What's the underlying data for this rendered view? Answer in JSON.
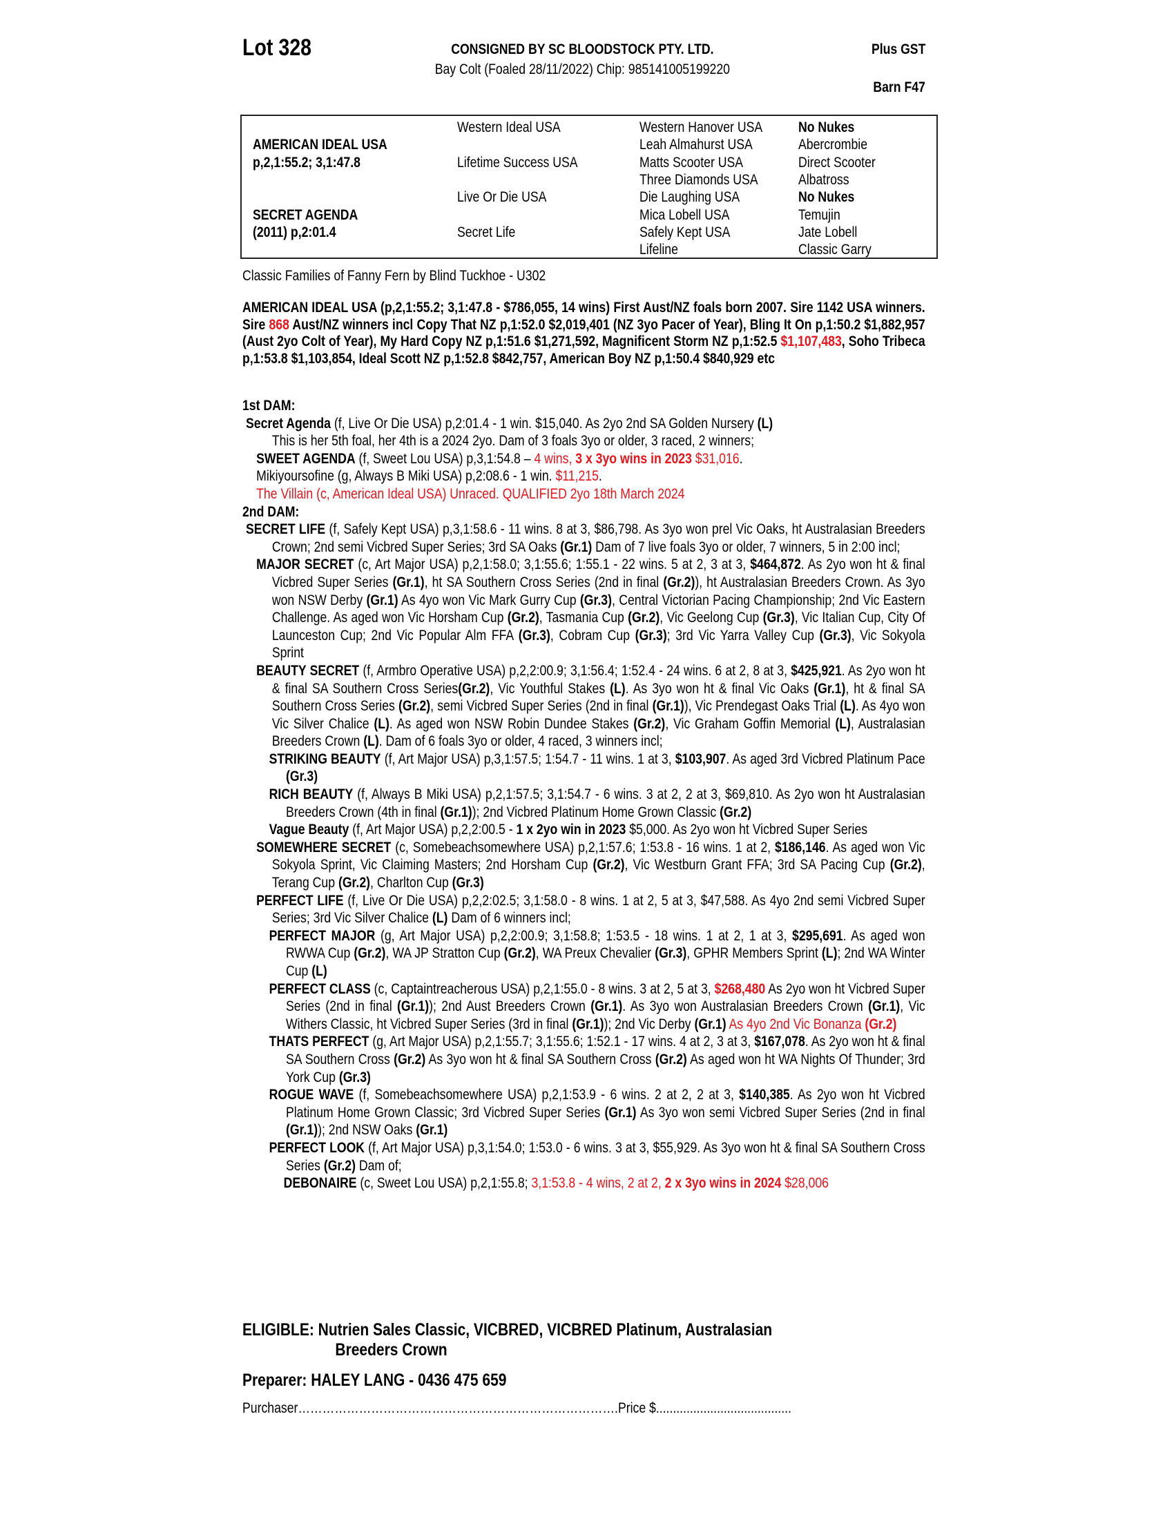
{
  "header": {
    "lot": "Lot 328",
    "consignor": "CONSIGNED BY SC BLOODSTOCK PTY. LTD.",
    "gst": "Plus GST",
    "description": "Bay Colt (Foaled 28/11/2022) Chip: 985141005199220",
    "barn": "Barn F47"
  },
  "pedigree": {
    "rows": [
      {
        "c1": "",
        "c2": "Western Ideal USA",
        "c3": "Western Hanover USA",
        "c4": "No Nukes",
        "c4_bold": true
      },
      {
        "c1": "AMERICAN IDEAL USA",
        "c2": "",
        "c3": "Leah Almahurst USA",
        "c4": "Abercrombie"
      },
      {
        "c1": "p,2,1:55.2; 3,1:47.8",
        "c2": "Lifetime Success USA",
        "c3": "Matts Scooter USA",
        "c4": "Direct Scooter"
      },
      {
        "c1": "",
        "c2": "",
        "c3": "Three Diamonds USA",
        "c4": "Albatross"
      },
      {
        "c1": "",
        "c2": "Live Or Die USA",
        "c3": "Die Laughing USA",
        "c4": "No Nukes",
        "c4_bold": true
      },
      {
        "c1": "SECRET AGENDA",
        "c2": "",
        "c3": "Mica Lobell USA",
        "c4": "Temujin"
      },
      {
        "c1": "(2011) p,2:01.4",
        "c2": "Secret Life",
        "c3": "Safely Kept USA",
        "c4": "Jate Lobell"
      },
      {
        "c1": "",
        "c2": "",
        "c3": "Lifeline",
        "c4": "Classic Garry"
      }
    ]
  },
  "families": "Classic Families of Fanny Fern by Blind Tuckhoe - U302",
  "sire_paragraph": [
    [
      "AMERICAN IDEAL USA (p,2,1:55.2; 3,1:47.8 - $786,055, 14 wins) First Aust/NZ foals born 2007. Sire 1142 USA winners. Sire ",
      "b"
    ],
    [
      "868",
      "br"
    ],
    [
      " Aust/NZ winners incl Copy That NZ p,1:52.0 $2,019,401 (NZ 3yo Pacer of Year), Bling It On p,1:50.2 $1,882,957 (Aust 2yo Colt of Year), My Hard Copy NZ p,1:51.6 $1,271,592, Magnificent Storm NZ p,1:52.5 ",
      "b"
    ],
    [
      "$1,107,483",
      "r"
    ],
    [
      ", Soho Tribeca p,1:53.8 $1,103,854, Ideal Scott NZ p,1:52.8 $842,757, American Boy NZ p,1:50.4 $840,929 etc",
      "b"
    ]
  ],
  "dams": [
    {
      "level": "h",
      "segs": [
        [
          "1st DAM:",
          "b"
        ]
      ]
    },
    {
      "level": "a",
      "segs": [
        [
          "Secret Agenda",
          "b"
        ],
        [
          " (f, Live Or Die USA) p,2:01.4 - 1 win. $15,040. As 2yo 2nd SA Golden Nursery ",
          ""
        ],
        [
          "(L)",
          "b"
        ]
      ]
    },
    {
      "level": "k",
      "segs": [
        [
          "This is her 5th foal, her 4th is a 2024 2yo. Dam of 3 foals 3yo or older, 3 raced, 2 winners;",
          ""
        ]
      ]
    },
    {
      "level": "b",
      "segs": [
        [
          "SWEET AGENDA",
          "b"
        ],
        [
          " (f, Sweet Lou USA) p,3,1:54.8 – ",
          ""
        ],
        [
          "4 wins, ",
          "r"
        ],
        [
          "3 x 3yo wins in 2023",
          "br"
        ],
        [
          " $31,016",
          "r"
        ],
        [
          ".",
          ""
        ]
      ]
    },
    {
      "level": "b",
      "segs": [
        [
          "Mikiyoursofine (g, Always B Miki USA) p,2:08.6 - 1 win. ",
          ""
        ],
        [
          "$11,215",
          "r"
        ],
        [
          ".",
          ""
        ]
      ]
    },
    {
      "level": "b",
      "segs": [
        [
          "The Villain (c, American Ideal USA) Unraced. QUALIFIED 2yo 18th March 2024",
          "r"
        ]
      ]
    },
    {
      "level": "h",
      "segs": [
        [
          "2nd DAM:",
          "b"
        ]
      ]
    },
    {
      "level": "a",
      "segs": [
        [
          "SECRET LIFE",
          "b"
        ],
        [
          " (f, Safely Kept USA) p,3,1:58.6 - 11 wins. 8 at 3, $86,798. As 3yo won prel Vic Oaks, ht Australasian Breeders Crown; 2nd semi Vicbred Super Series; 3rd SA Oaks ",
          ""
        ],
        [
          "(Gr.1)",
          "b"
        ],
        [
          " Dam of 7 live foals 3yo or older, 7 winners, 5 in 2:00 incl;",
          ""
        ]
      ]
    },
    {
      "level": "b",
      "segs": [
        [
          "MAJOR SECRET",
          "b"
        ],
        [
          " (c, Art Major USA) p,2,1:58.0; 3,1:55.6; 1:55.1 - 22 wins. 5 at 2, 3 at 3, ",
          ""
        ],
        [
          "$464,872",
          "b"
        ],
        [
          ". As 2yo won ht & final Vicbred Super Series ",
          ""
        ],
        [
          "(Gr.1)",
          "b"
        ],
        [
          ", ht SA Southern Cross Series (2nd in final ",
          ""
        ],
        [
          "(Gr.2)",
          "b"
        ],
        [
          "), ht Australasian Breeders Crown. As 3yo won NSW Derby ",
          ""
        ],
        [
          "(Gr.1)",
          "b"
        ],
        [
          " As 4yo won Vic Mark Gurry Cup ",
          ""
        ],
        [
          "(Gr.3)",
          "b"
        ],
        [
          ", Central Victorian Pacing Championship; 2nd Vic Eastern Challenge. As aged won Vic Horsham Cup ",
          ""
        ],
        [
          "(Gr.2)",
          "b"
        ],
        [
          ", Tasmania Cup ",
          ""
        ],
        [
          "(Gr.2)",
          "b"
        ],
        [
          ", Vic Geelong Cup ",
          ""
        ],
        [
          "(Gr.3)",
          "b"
        ],
        [
          ", Vic Italian Cup, City Of Launceston Cup; 2nd Vic Popular Alm FFA ",
          ""
        ],
        [
          "(Gr.3)",
          "b"
        ],
        [
          ", Cobram Cup ",
          ""
        ],
        [
          "(Gr.3)",
          "b"
        ],
        [
          "; 3rd Vic Yarra Valley Cup ",
          ""
        ],
        [
          "(Gr.3)",
          "b"
        ],
        [
          ", Vic Sokyola Sprint",
          ""
        ]
      ]
    },
    {
      "level": "b",
      "segs": [
        [
          "BEAUTY SECRET",
          "b"
        ],
        [
          " (f, Armbro Operative USA) p,2,2:00.9; 3,1:56.4; 1:52.4 - 24 wins. 6 at 2, 8 at 3, ",
          ""
        ],
        [
          "$425,921",
          "b"
        ],
        [
          ". As 2yo won ht & final SA Southern Cross Series",
          ""
        ],
        [
          "(Gr.2)",
          "b"
        ],
        [
          ", Vic Youthful Stakes ",
          ""
        ],
        [
          "(L)",
          "b"
        ],
        [
          ". As 3yo won ht & final Vic Oaks ",
          ""
        ],
        [
          "(Gr.1)",
          "b"
        ],
        [
          ", ht & final SA Southern Cross Series ",
          ""
        ],
        [
          "(Gr.2)",
          "b"
        ],
        [
          ", semi Vicbred Super Series (2nd in final ",
          ""
        ],
        [
          "(Gr.1)",
          "b"
        ],
        [
          "), Vic Prendegast Oaks Trial ",
          ""
        ],
        [
          "(L)",
          "b"
        ],
        [
          ". As 4yo won Vic Silver Chalice ",
          ""
        ],
        [
          "(L)",
          "b"
        ],
        [
          ". As aged won NSW Robin Dundee Stakes ",
          ""
        ],
        [
          "(Gr.2)",
          "b"
        ],
        [
          ", Vic Graham Goffin Memorial ",
          ""
        ],
        [
          "(L)",
          "b"
        ],
        [
          ", Australasian Breeders Crown ",
          ""
        ],
        [
          "(L)",
          "b"
        ],
        [
          ". Dam of 6 foals 3yo or older, 4 raced, 3 winners incl;",
          ""
        ]
      ]
    },
    {
      "level": "c",
      "segs": [
        [
          "STRIKING BEAUTY",
          "b"
        ],
        [
          " (f, Art Major USA) p,3,1:57.5; 1:54.7 - 11 wins. 1 at 3, ",
          ""
        ],
        [
          "$103,907",
          "b"
        ],
        [
          ". As aged 3rd Vicbred Platinum Pace ",
          ""
        ],
        [
          "(Gr.3)",
          "b"
        ]
      ]
    },
    {
      "level": "c",
      "segs": [
        [
          "RICH BEAUTY",
          "b"
        ],
        [
          " (f, Always B Miki USA) p,2,1:57.5; 3,1:54.7 - 6 wins. 3 at 2, 2 at 3, $69,810. As 2yo won ht Australasian Breeders Crown (4th in final ",
          ""
        ],
        [
          "(Gr.1)",
          "b"
        ],
        [
          "); 2nd Vicbred Platinum Home Grown Classic ",
          ""
        ],
        [
          "(Gr.2)",
          "b"
        ]
      ]
    },
    {
      "level": "c",
      "segs": [
        [
          "Vague Beauty",
          "b"
        ],
        [
          " (f, Art Major USA) p,2,2:00.5 - ",
          ""
        ],
        [
          "1 x 2yo win in 2023",
          "b"
        ],
        [
          " $5,000. As 2yo won ht Vicbred Super Series",
          ""
        ]
      ]
    },
    {
      "level": "b",
      "segs": [
        [
          "SOMEWHERE SECRET",
          "b"
        ],
        [
          " (c, Somebeachsomewhere USA) p,2,1:57.6; 1:53.8 - 16 wins. 1 at 2, ",
          ""
        ],
        [
          "$186,146",
          "b"
        ],
        [
          ". As aged won Vic Sokyola Sprint, Vic Claiming Masters; 2nd Horsham Cup ",
          ""
        ],
        [
          "(Gr.2)",
          "b"
        ],
        [
          ", Vic Westburn Grant FFA; 3rd SA Pacing Cup ",
          ""
        ],
        [
          "(Gr.2)",
          "b"
        ],
        [
          ", Terang Cup ",
          ""
        ],
        [
          "(Gr.2)",
          "b"
        ],
        [
          ", Charlton Cup ",
          ""
        ],
        [
          "(Gr.3)",
          "b"
        ]
      ]
    },
    {
      "level": "b",
      "segs": [
        [
          "PERFECT LIFE",
          "b"
        ],
        [
          " (f, Live Or Die USA) p,2,2:02.5; 3,1:58.0 - 8 wins. 1 at 2, 5 at 3, $47,588. As 4yo 2nd semi Vicbred Super Series; 3rd Vic Silver Chalice ",
          ""
        ],
        [
          "(L)",
          "b"
        ],
        [
          " Dam of 6 winners incl;",
          ""
        ]
      ]
    },
    {
      "level": "c",
      "segs": [
        [
          "PERFECT MAJOR",
          "b"
        ],
        [
          " (g, Art Major USA) p,2,2:00.9; 3,1:58.8; 1:53.5 - 18 wins. 1 at 2, 1 at 3, ",
          ""
        ],
        [
          "$295,691",
          "b"
        ],
        [
          ". As aged won RWWA Cup ",
          ""
        ],
        [
          "(Gr.2)",
          "b"
        ],
        [
          ", WA JP Stratton Cup ",
          ""
        ],
        [
          "(Gr.2)",
          "b"
        ],
        [
          ", WA Preux Chevalier ",
          ""
        ],
        [
          "(Gr.3)",
          "b"
        ],
        [
          ", GPHR Members Sprint ",
          ""
        ],
        [
          "(L)",
          "b"
        ],
        [
          "; 2nd WA Winter Cup ",
          ""
        ],
        [
          "(L)",
          "b"
        ]
      ]
    },
    {
      "level": "c",
      "segs": [
        [
          "PERFECT CLASS",
          "b"
        ],
        [
          " (c, Captaintreacherous USA) p,2,1:55.0 - 8 wins. 3 at 2, 5 at 3, ",
          ""
        ],
        [
          "$268,480",
          "br"
        ],
        [
          " As 2yo won ht Vicbred Super Series (2nd in final ",
          ""
        ],
        [
          "(Gr.1)",
          "b"
        ],
        [
          "); 2nd Aust Breeders Crown ",
          ""
        ],
        [
          "(Gr.1)",
          "b"
        ],
        [
          ". As 3yo won Australasian Breeders Crown ",
          ""
        ],
        [
          "(Gr.1)",
          "b"
        ],
        [
          ", Vic Withers Classic, ht Vicbred Super Series (3rd in final ",
          ""
        ],
        [
          "(Gr.1)",
          "b"
        ],
        [
          "); 2nd Vic Derby ",
          ""
        ],
        [
          "(Gr.1)",
          "b"
        ],
        [
          " As 4yo 2nd Vic Bonanza ",
          "r"
        ],
        [
          "(Gr.2)",
          "br"
        ]
      ]
    },
    {
      "level": "c",
      "segs": [
        [
          "THATS PERFECT",
          "b"
        ],
        [
          " (g, Art Major USA) p,2,1:55.7; 3,1:55.6; 1:52.1 - 17 wins. 4 at 2, 3 at 3, ",
          ""
        ],
        [
          "$167,078",
          "b"
        ],
        [
          ". As 2yo won ht & final SA Southern Cross ",
          ""
        ],
        [
          "(Gr.2)",
          "b"
        ],
        [
          " As 3yo won ht & final SA Southern Cross ",
          ""
        ],
        [
          "(Gr.2)",
          "b"
        ],
        [
          " As aged won ht WA Nights Of Thunder; 3rd York Cup ",
          ""
        ],
        [
          "(Gr.3)",
          "b"
        ]
      ]
    },
    {
      "level": "c",
      "segs": [
        [
          "ROGUE WAVE",
          "b"
        ],
        [
          " (f, Somebeachsomewhere USA) p,2,1:53.9 - 6 wins. 2 at 2, 2 at 3, ",
          ""
        ],
        [
          "$140,385",
          "b"
        ],
        [
          ". As 2yo won ht Vicbred Platinum Home Grown Classic; 3rd Vicbred Super Series ",
          ""
        ],
        [
          "(Gr.1)",
          "b"
        ],
        [
          " As 3yo won semi Vicbred Super Series (2nd in final ",
          ""
        ],
        [
          "(Gr.1)",
          "b"
        ],
        [
          "); 2nd NSW Oaks ",
          ""
        ],
        [
          "(Gr.1)",
          "b"
        ]
      ]
    },
    {
      "level": "c",
      "segs": [
        [
          "PERFECT LOOK",
          "b"
        ],
        [
          " (f, Art Major USA) p,3,1:54.0; 1:53.0 - 6 wins. 3 at 3, $55,929. As 3yo won ht & final SA Southern Cross Series ",
          ""
        ],
        [
          "(Gr.2)",
          "b"
        ],
        [
          " Dam of;",
          ""
        ]
      ]
    },
    {
      "level": "d",
      "segs": [
        [
          "DEBONAIRE",
          "b"
        ],
        [
          " (c, Sweet Lou USA) p,2,1:55.8; ",
          ""
        ],
        [
          "3,1:53.8 - 4 wins, 2 at 2, ",
          "r"
        ],
        [
          "2 x 3yo wins in 2024",
          "br"
        ],
        [
          " $28,006",
          "r"
        ]
      ]
    }
  ],
  "eligible": {
    "line1": "ELIGIBLE: Nutrien Sales Classic, VICBRED, VICBRED Platinum, Australasian",
    "line2": "Breeders Crown"
  },
  "preparer": "Preparer: HALEY LANG - 0436 475 659",
  "purchaser": {
    "label": "Purchaser",
    "dots1": "…………………………………………………………………….",
    "price_label": "Price $",
    "dots2": "........................................"
  },
  "colors": {
    "text": "#000000",
    "highlight": "#e8141b"
  }
}
